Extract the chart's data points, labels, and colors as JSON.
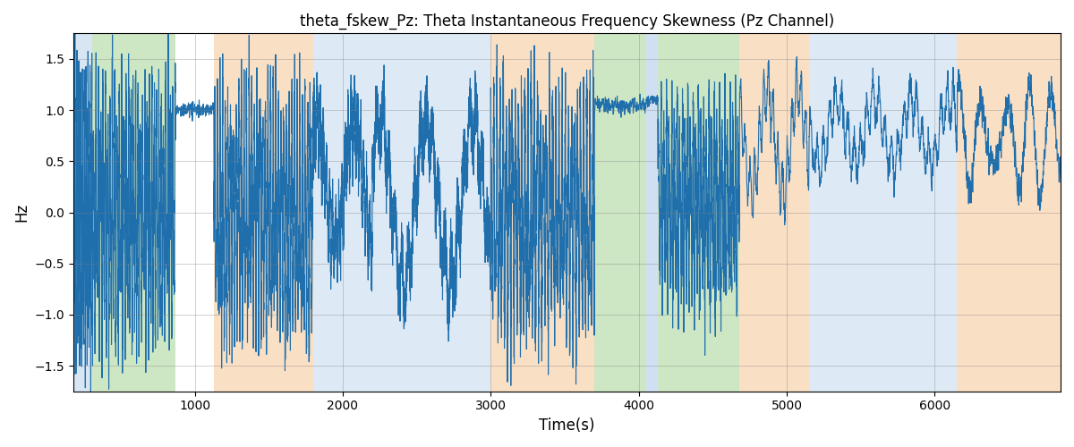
{
  "title": "theta_fskew_Pz: Theta Instantaneous Frequency Skewness (Pz Channel)",
  "xlabel": "Time(s)",
  "ylabel": "Hz",
  "xlim": [
    180,
    6850
  ],
  "ylim": [
    -1.75,
    1.75
  ],
  "yticks": [
    -1.5,
    -1.0,
    -0.5,
    0.0,
    0.5,
    1.0,
    1.5
  ],
  "xticks": [
    1000,
    2000,
    3000,
    4000,
    5000,
    6000
  ],
  "line_color": "#1f6fad",
  "line_width": 0.8,
  "bg_bands": [
    {
      "xmin": 180,
      "xmax": 310,
      "color": "#aac8e8",
      "alpha": 0.45
    },
    {
      "xmin": 310,
      "xmax": 870,
      "color": "#90c97a",
      "alpha": 0.45
    },
    {
      "xmin": 1130,
      "xmax": 1800,
      "color": "#f5c08a",
      "alpha": 0.5
    },
    {
      "xmin": 1800,
      "xmax": 3000,
      "color": "#aac8e8",
      "alpha": 0.4
    },
    {
      "xmin": 3000,
      "xmax": 3700,
      "color": "#f5c08a",
      "alpha": 0.5
    },
    {
      "xmin": 3700,
      "xmax": 4050,
      "color": "#90c97a",
      "alpha": 0.45
    },
    {
      "xmin": 4050,
      "xmax": 4130,
      "color": "#aac8e8",
      "alpha": 0.55
    },
    {
      "xmin": 4130,
      "xmax": 4680,
      "color": "#90c97a",
      "alpha": 0.45
    },
    {
      "xmin": 4680,
      "xmax": 5150,
      "color": "#f5c08a",
      "alpha": 0.5
    },
    {
      "xmin": 5150,
      "xmax": 6150,
      "color": "#aac8e8",
      "alpha": 0.4
    },
    {
      "xmin": 6150,
      "xmax": 6850,
      "color": "#f5c08a",
      "alpha": 0.5
    }
  ],
  "seed": 12345,
  "n_points": 13300,
  "dt": 0.5
}
